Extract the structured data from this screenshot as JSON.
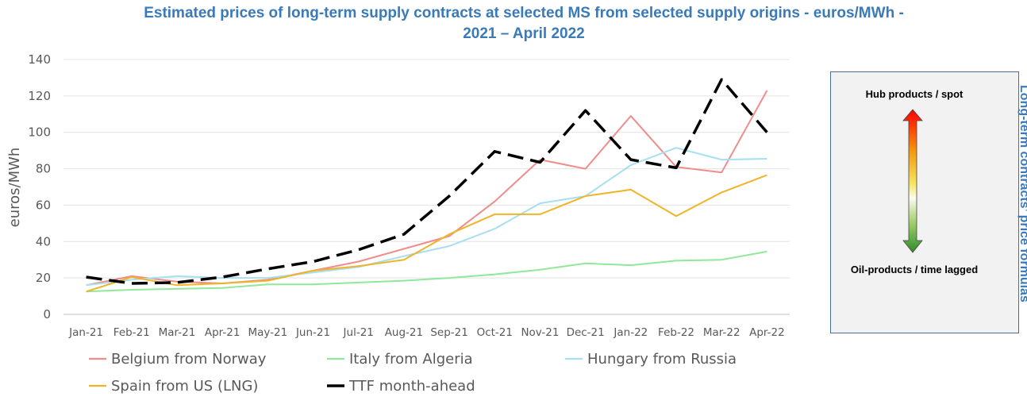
{
  "title_line1": "Estimated prices of long-term supply contracts at selected MS from selected supply origins - euros/MWh  -",
  "title_line2": "2021 – April 2022",
  "panel": {
    "top_label": "Hub products / spot",
    "bottom_label": "Oil-products / time lagged",
    "side_label": "Long-term contracts’ price formulas"
  },
  "chart_data": {
    "type": "line",
    "title": "Estimated prices of long-term supply contracts at selected MS from selected supply origins - euros/MWh - 2021 – April 2022",
    "xlabel": "",
    "ylabel": "euros/MWh",
    "ylim": [
      0,
      140
    ],
    "yticks": [
      0,
      20,
      40,
      60,
      80,
      100,
      120,
      140
    ],
    "grid": true,
    "legend_position": "bottom",
    "categories": [
      "Jan-21",
      "Feb-21",
      "Mar-21",
      "Apr-21",
      "May-21",
      "Jun-21",
      "Jul-21",
      "Aug-21",
      "Sep-21",
      "Oct-21",
      "Nov-21",
      "Dec-21",
      "Jan-22",
      "Feb-22",
      "Mar-22",
      "Apr-22"
    ],
    "series": [
      {
        "name": "Belgium from Norway",
        "color": "#f08c8c",
        "dash": false,
        "values": [
          16,
          21,
          18,
          17,
          19,
          24,
          29,
          36,
          43,
          62,
          85,
          80,
          109,
          81,
          78,
          123
        ]
      },
      {
        "name": "Italy from Algeria",
        "color": "#90e89a",
        "dash": false,
        "values": [
          12.5,
          13.5,
          14,
          14.5,
          16.5,
          16.5,
          17.5,
          18.5,
          20,
          22,
          24.5,
          28,
          27,
          29.5,
          30,
          34.5
        ]
      },
      {
        "name": "Hungary from Russia",
        "color": "#a5dff0",
        "dash": false,
        "values": [
          16,
          19,
          21,
          20,
          20,
          23,
          26,
          32,
          37.5,
          47,
          61,
          65,
          82,
          91.5,
          85,
          85.5
        ]
      },
      {
        "name": "Spain from US (LNG)",
        "color": "#f0b429",
        "dash": false,
        "values": [
          12.5,
          20.5,
          16,
          17,
          18.5,
          24,
          26.5,
          30,
          44,
          55,
          55,
          65,
          68.5,
          54,
          67,
          76.5
        ]
      },
      {
        "name": "TTF month-ahead",
        "color": "#000000",
        "dash": true,
        "values": [
          20.5,
          17,
          17.5,
          20.5,
          25,
          29,
          35.5,
          44,
          65,
          89.5,
          83.5,
          112,
          85,
          80.5,
          129,
          100
        ]
      }
    ]
  }
}
